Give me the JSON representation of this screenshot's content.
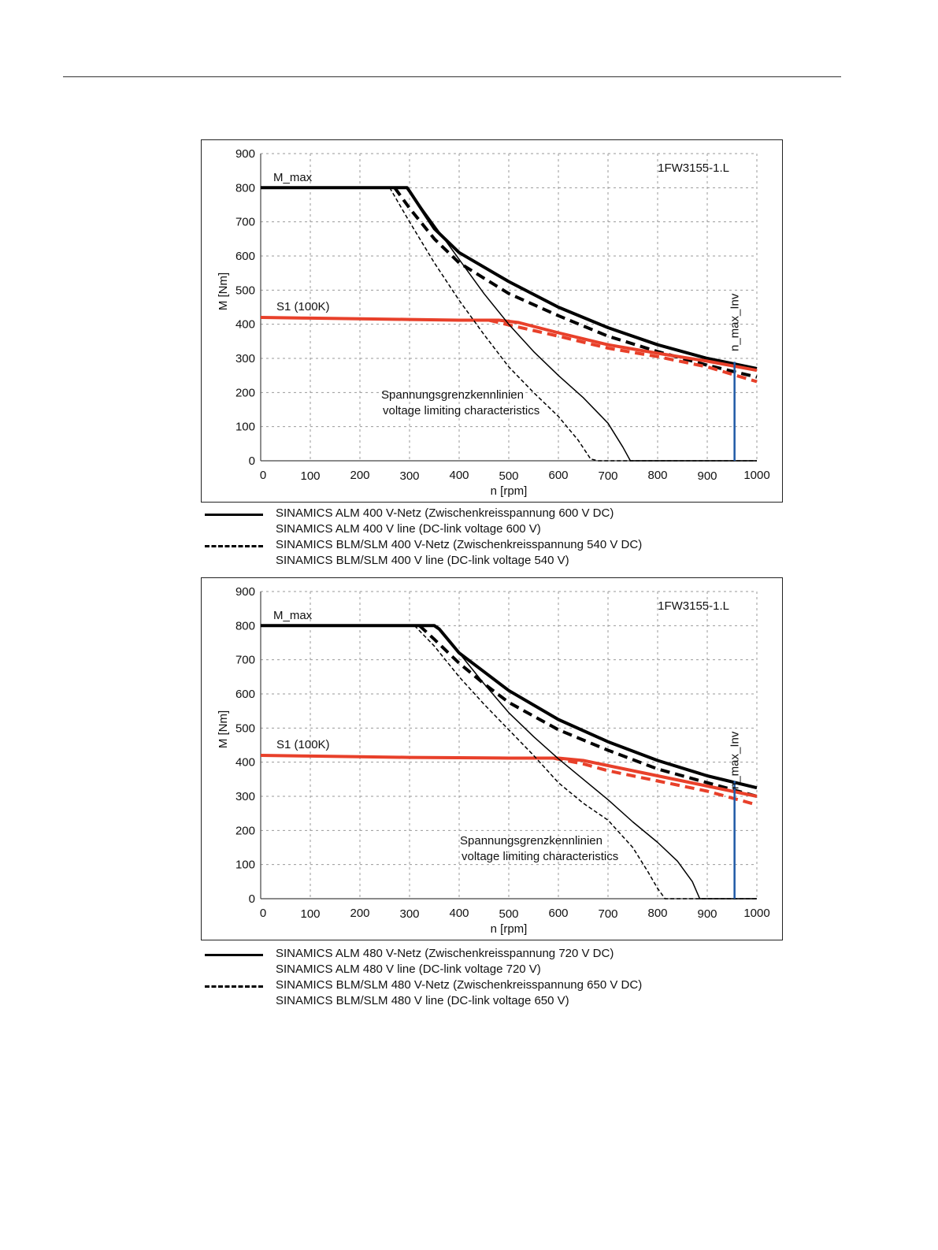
{
  "chart_data": [
    {
      "type": "line",
      "title": "1FW3155-1.L",
      "xlabel": "n [rpm]",
      "ylabel": "M [Nm]",
      "xlim": [
        0,
        1000
      ],
      "ylim": [
        0,
        900
      ],
      "x_ticks": [
        0,
        100,
        200,
        300,
        400,
        500,
        600,
        700,
        800,
        900,
        1000
      ],
      "y_ticks": [
        0,
        100,
        200,
        300,
        400,
        500,
        600,
        700,
        800,
        900
      ],
      "grid": true,
      "annotations": {
        "m_max": "M_max",
        "s1": "S1 (100K)",
        "n_max": "n_max_Inv",
        "voltage_line1": "Spannungsgrenzkennlinien",
        "voltage_line2": "voltage limiting characteristics"
      },
      "n_max_value": 955,
      "colors": {
        "alm": "#000000",
        "blm": "#000000",
        "s1": "#e8402a",
        "n_max": "#1f5aa6"
      },
      "series": [
        {
          "key": "alm_mmax",
          "style": "solid",
          "color": "#000000",
          "width": 4,
          "x": [
            0,
            295,
            300,
            350,
            400,
            500,
            600,
            700,
            800,
            900,
            1000
          ],
          "y": [
            800,
            800,
            790,
            680,
            610,
            525,
            450,
            390,
            340,
            300,
            270
          ]
        },
        {
          "key": "blm_mmax",
          "style": "dashed",
          "color": "#000000",
          "width": 4,
          "x": [
            270,
            300,
            350,
            400,
            500,
            600,
            700,
            800,
            900,
            1000
          ],
          "y": [
            800,
            740,
            650,
            580,
            490,
            425,
            365,
            320,
            280,
            245
          ]
        },
        {
          "key": "alm_s1",
          "style": "solid",
          "color": "#e8402a",
          "width": 4,
          "x": [
            0,
            100,
            200,
            300,
            400,
            480,
            520,
            600,
            700,
            800,
            900,
            1000
          ],
          "y": [
            420,
            418,
            416,
            414,
            412,
            412,
            405,
            375,
            340,
            315,
            292,
            265
          ]
        },
        {
          "key": "blm_s1",
          "style": "dashed",
          "color": "#e8402a",
          "width": 4,
          "x": [
            460,
            500,
            600,
            700,
            800,
            900,
            1000
          ],
          "y": [
            412,
            398,
            365,
            330,
            305,
            275,
            232
          ]
        },
        {
          "key": "alm_vlim",
          "style": "solid",
          "color": "#000000",
          "width": 1.5,
          "x": [
            295,
            350,
            400,
            450,
            500,
            550,
            600,
            650,
            700,
            730,
            745,
            760,
            1000
          ],
          "y": [
            800,
            690,
            590,
            490,
            400,
            320,
            250,
            185,
            110,
            40,
            0,
            0,
            0
          ]
        },
        {
          "key": "blm_vlim",
          "style": "dashed",
          "color": "#000000",
          "width": 1.5,
          "x": [
            260,
            300,
            350,
            400,
            450,
            500,
            550,
            600,
            640,
            665,
            680,
            1000
          ],
          "y": [
            800,
            700,
            580,
            470,
            370,
            275,
            200,
            130,
            60,
            5,
            0,
            0
          ]
        }
      ]
    },
    {
      "type": "line",
      "title": "1FW3155-1.L",
      "xlabel": "n [rpm]",
      "ylabel": "M [Nm]",
      "xlim": [
        0,
        1000
      ],
      "ylim": [
        0,
        900
      ],
      "x_ticks": [
        0,
        100,
        200,
        300,
        400,
        500,
        600,
        700,
        800,
        900,
        1000
      ],
      "y_ticks": [
        0,
        100,
        200,
        300,
        400,
        500,
        600,
        700,
        800,
        900
      ],
      "grid": true,
      "annotations": {
        "m_max": "M_max",
        "s1": "S1 (100K)",
        "n_max": "n_max_Inv",
        "voltage_line1": "Spannungsgrenzkennlinien",
        "voltage_line2": "voltage limiting characteristics"
      },
      "n_max_value": 955,
      "colors": {
        "alm": "#000000",
        "blm": "#000000",
        "s1": "#e8402a",
        "n_max": "#1f5aa6"
      },
      "series": [
        {
          "key": "alm_mmax",
          "style": "solid",
          "color": "#000000",
          "width": 4,
          "x": [
            0,
            350,
            360,
            400,
            450,
            500,
            600,
            700,
            800,
            900,
            1000
          ],
          "y": [
            800,
            800,
            790,
            720,
            665,
            610,
            525,
            460,
            405,
            360,
            325
          ]
        },
        {
          "key": "blm_mmax",
          "style": "dashed",
          "color": "#000000",
          "width": 4,
          "x": [
            320,
            350,
            400,
            450,
            500,
            600,
            700,
            800,
            900,
            1000
          ],
          "y": [
            800,
            760,
            690,
            630,
            575,
            495,
            435,
            380,
            340,
            300
          ]
        },
        {
          "key": "alm_s1",
          "style": "solid",
          "color": "#e8402a",
          "width": 4,
          "x": [
            0,
            100,
            200,
            300,
            400,
            500,
            600,
            650,
            700,
            800,
            900,
            1000
          ],
          "y": [
            420,
            418,
            416,
            414,
            413,
            412,
            412,
            405,
            390,
            360,
            330,
            300
          ]
        },
        {
          "key": "blm_s1",
          "style": "dashed",
          "color": "#e8402a",
          "width": 4,
          "x": [
            590,
            650,
            700,
            800,
            900,
            1000
          ],
          "y": [
            412,
            395,
            375,
            345,
            315,
            275
          ]
        },
        {
          "key": "alm_vlim",
          "style": "solid",
          "color": "#000000",
          "width": 1.5,
          "x": [
            355,
            400,
            450,
            500,
            550,
            600,
            650,
            700,
            750,
            800,
            840,
            870,
            885,
            895,
            1000
          ],
          "y": [
            800,
            720,
            630,
            545,
            475,
            410,
            350,
            290,
            225,
            165,
            110,
            50,
            0,
            0,
            0
          ]
        },
        {
          "key": "blm_vlim",
          "style": "dashed",
          "color": "#000000",
          "width": 1.5,
          "x": [
            310,
            350,
            400,
            450,
            500,
            550,
            600,
            650,
            700,
            750,
            780,
            800,
            815,
            830,
            1000
          ],
          "y": [
            800,
            740,
            650,
            570,
            495,
            420,
            340,
            280,
            230,
            150,
            80,
            30,
            0,
            0,
            0
          ]
        }
      ]
    }
  ],
  "legends": [
    {
      "entries": [
        {
          "style": "solid",
          "line1": "SINAMICS ALM  400 V-Netz (Zwischenkreisspannung 600 V DC)",
          "line2": "SINAMICS ALM  400 V line (DC-link voltage 600 V)"
        },
        {
          "style": "dashed",
          "line1": "SINAMICS BLM/SLM  400 V-Netz (Zwischenkreisspannung 540 V DC)",
          "line2": "SINAMICS BLM/SLM  400 V line (DC-link voltage 540 V)"
        }
      ]
    },
    {
      "entries": [
        {
          "style": "solid",
          "line1": "SINAMICS ALM  480 V-Netz (Zwischenkreisspannung 720 V DC)",
          "line2": "SINAMICS ALM  480 V line (DC-link voltage 720 V)"
        },
        {
          "style": "dashed",
          "line1": "SINAMICS BLM/SLM  480 V-Netz (Zwischenkreisspannung 650 V DC)",
          "line2": "SINAMICS BLM/SLM  480 V line (DC-link voltage 650 V)"
        }
      ]
    }
  ]
}
